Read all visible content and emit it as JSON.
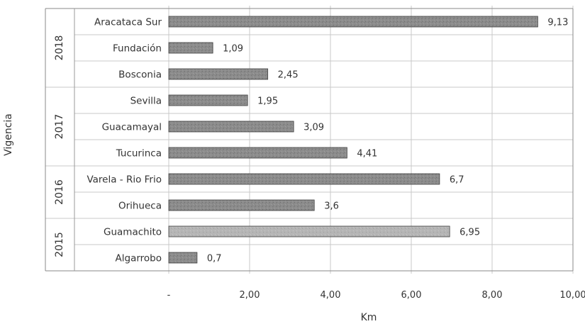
{
  "chart_data": {
    "type": "bar",
    "orientation": "horizontal",
    "groups": [
      {
        "name": "2018",
        "categories": [
          "Aracataca Sur",
          "Fundación",
          "Bosconia"
        ],
        "values": [
          9.13,
          1.09,
          2.45
        ],
        "value_labels": [
          "9,13",
          "1,09",
          "2,45"
        ]
      },
      {
        "name": "2017",
        "categories": [
          "Sevilla",
          "Guacamayal",
          "Tucurinca"
        ],
        "values": [
          1.95,
          3.09,
          4.41
        ],
        "value_labels": [
          "1,95",
          "3,09",
          "4,41"
        ]
      },
      {
        "name": "2016",
        "categories": [
          "Varela - Rio Frio",
          "Orihueca"
        ],
        "values": [
          6.7,
          3.6
        ],
        "value_labels": [
          "6,7",
          "3,6"
        ]
      },
      {
        "name": "2015",
        "categories": [
          "Guamachito",
          "Algarrobo"
        ],
        "values": [
          6.95,
          0.7
        ],
        "value_labels": [
          "6,95",
          "0,7"
        ]
      }
    ],
    "xlabel": "Km",
    "ylabel": "Vigencia",
    "xlim": [
      0,
      10
    ],
    "xticks": [
      0,
      2,
      4,
      6,
      8,
      10
    ],
    "xtick_labels": [
      "-",
      "2,00",
      "4,00",
      "6,00",
      "8,00",
      "10,00"
    ],
    "grid": true,
    "colors": {
      "bar": "#8c8c8c",
      "bar_light": "#b5b5b5",
      "bar_edge": "#3d3d3d",
      "grid": "#c8c8c8"
    }
  }
}
